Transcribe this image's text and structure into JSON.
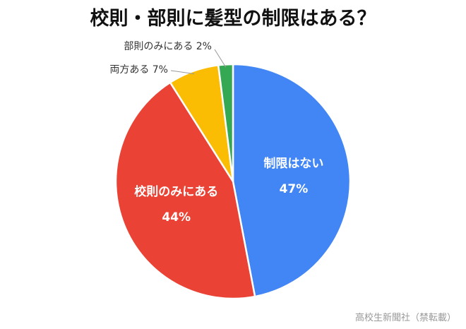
{
  "chart_data": {
    "type": "pie",
    "title": "校則・部則に髪型の制限はある？",
    "slices": [
      {
        "label": "制限はない",
        "value": 47,
        "value_label": "47%",
        "color": "#4285F4",
        "label_position": "inside"
      },
      {
        "label": "校則のみにある",
        "value": 44,
        "value_label": "44%",
        "color": "#EA4335",
        "label_position": "inside"
      },
      {
        "label": "両方ある",
        "value": 7,
        "value_label": "7%",
        "color": "#FBBC04",
        "label_position": "outside"
      },
      {
        "label": "部則のみにある",
        "value": 2,
        "value_label": "2%",
        "color": "#34A853",
        "label_position": "outside"
      }
    ],
    "start": "top",
    "direction": "clockwise"
  },
  "watermark": "高校生新聞社（禁転載）"
}
